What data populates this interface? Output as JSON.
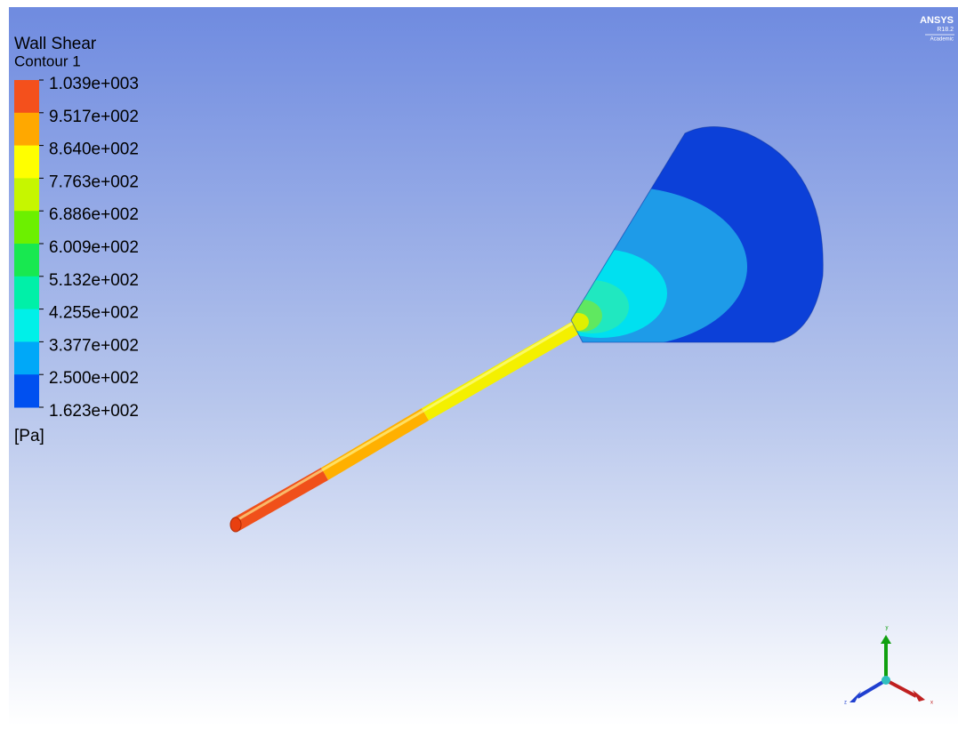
{
  "legend": {
    "title": "Wall Shear",
    "subtitle": "Contour 1",
    "labels": [
      "1.039e+003",
      "9.517e+002",
      "8.640e+002",
      "7.763e+002",
      "6.886e+002",
      "6.009e+002",
      "5.132e+002",
      "4.255e+002",
      "3.377e+002",
      "2.500e+002",
      "1.623e+002"
    ],
    "colors": [
      "#f4501c",
      "#ffa800",
      "#ffff00",
      "#c6f600",
      "#6cf000",
      "#18e850",
      "#00f0a8",
      "#00f0e8",
      "#00a8f8",
      "#0050f0"
    ],
    "unit": "[Pa]"
  },
  "logo": {
    "name": "ANSYS",
    "version": "R18.2",
    "edition": "Academic"
  },
  "triad": {
    "x": "x",
    "y": "y",
    "z": "z"
  }
}
